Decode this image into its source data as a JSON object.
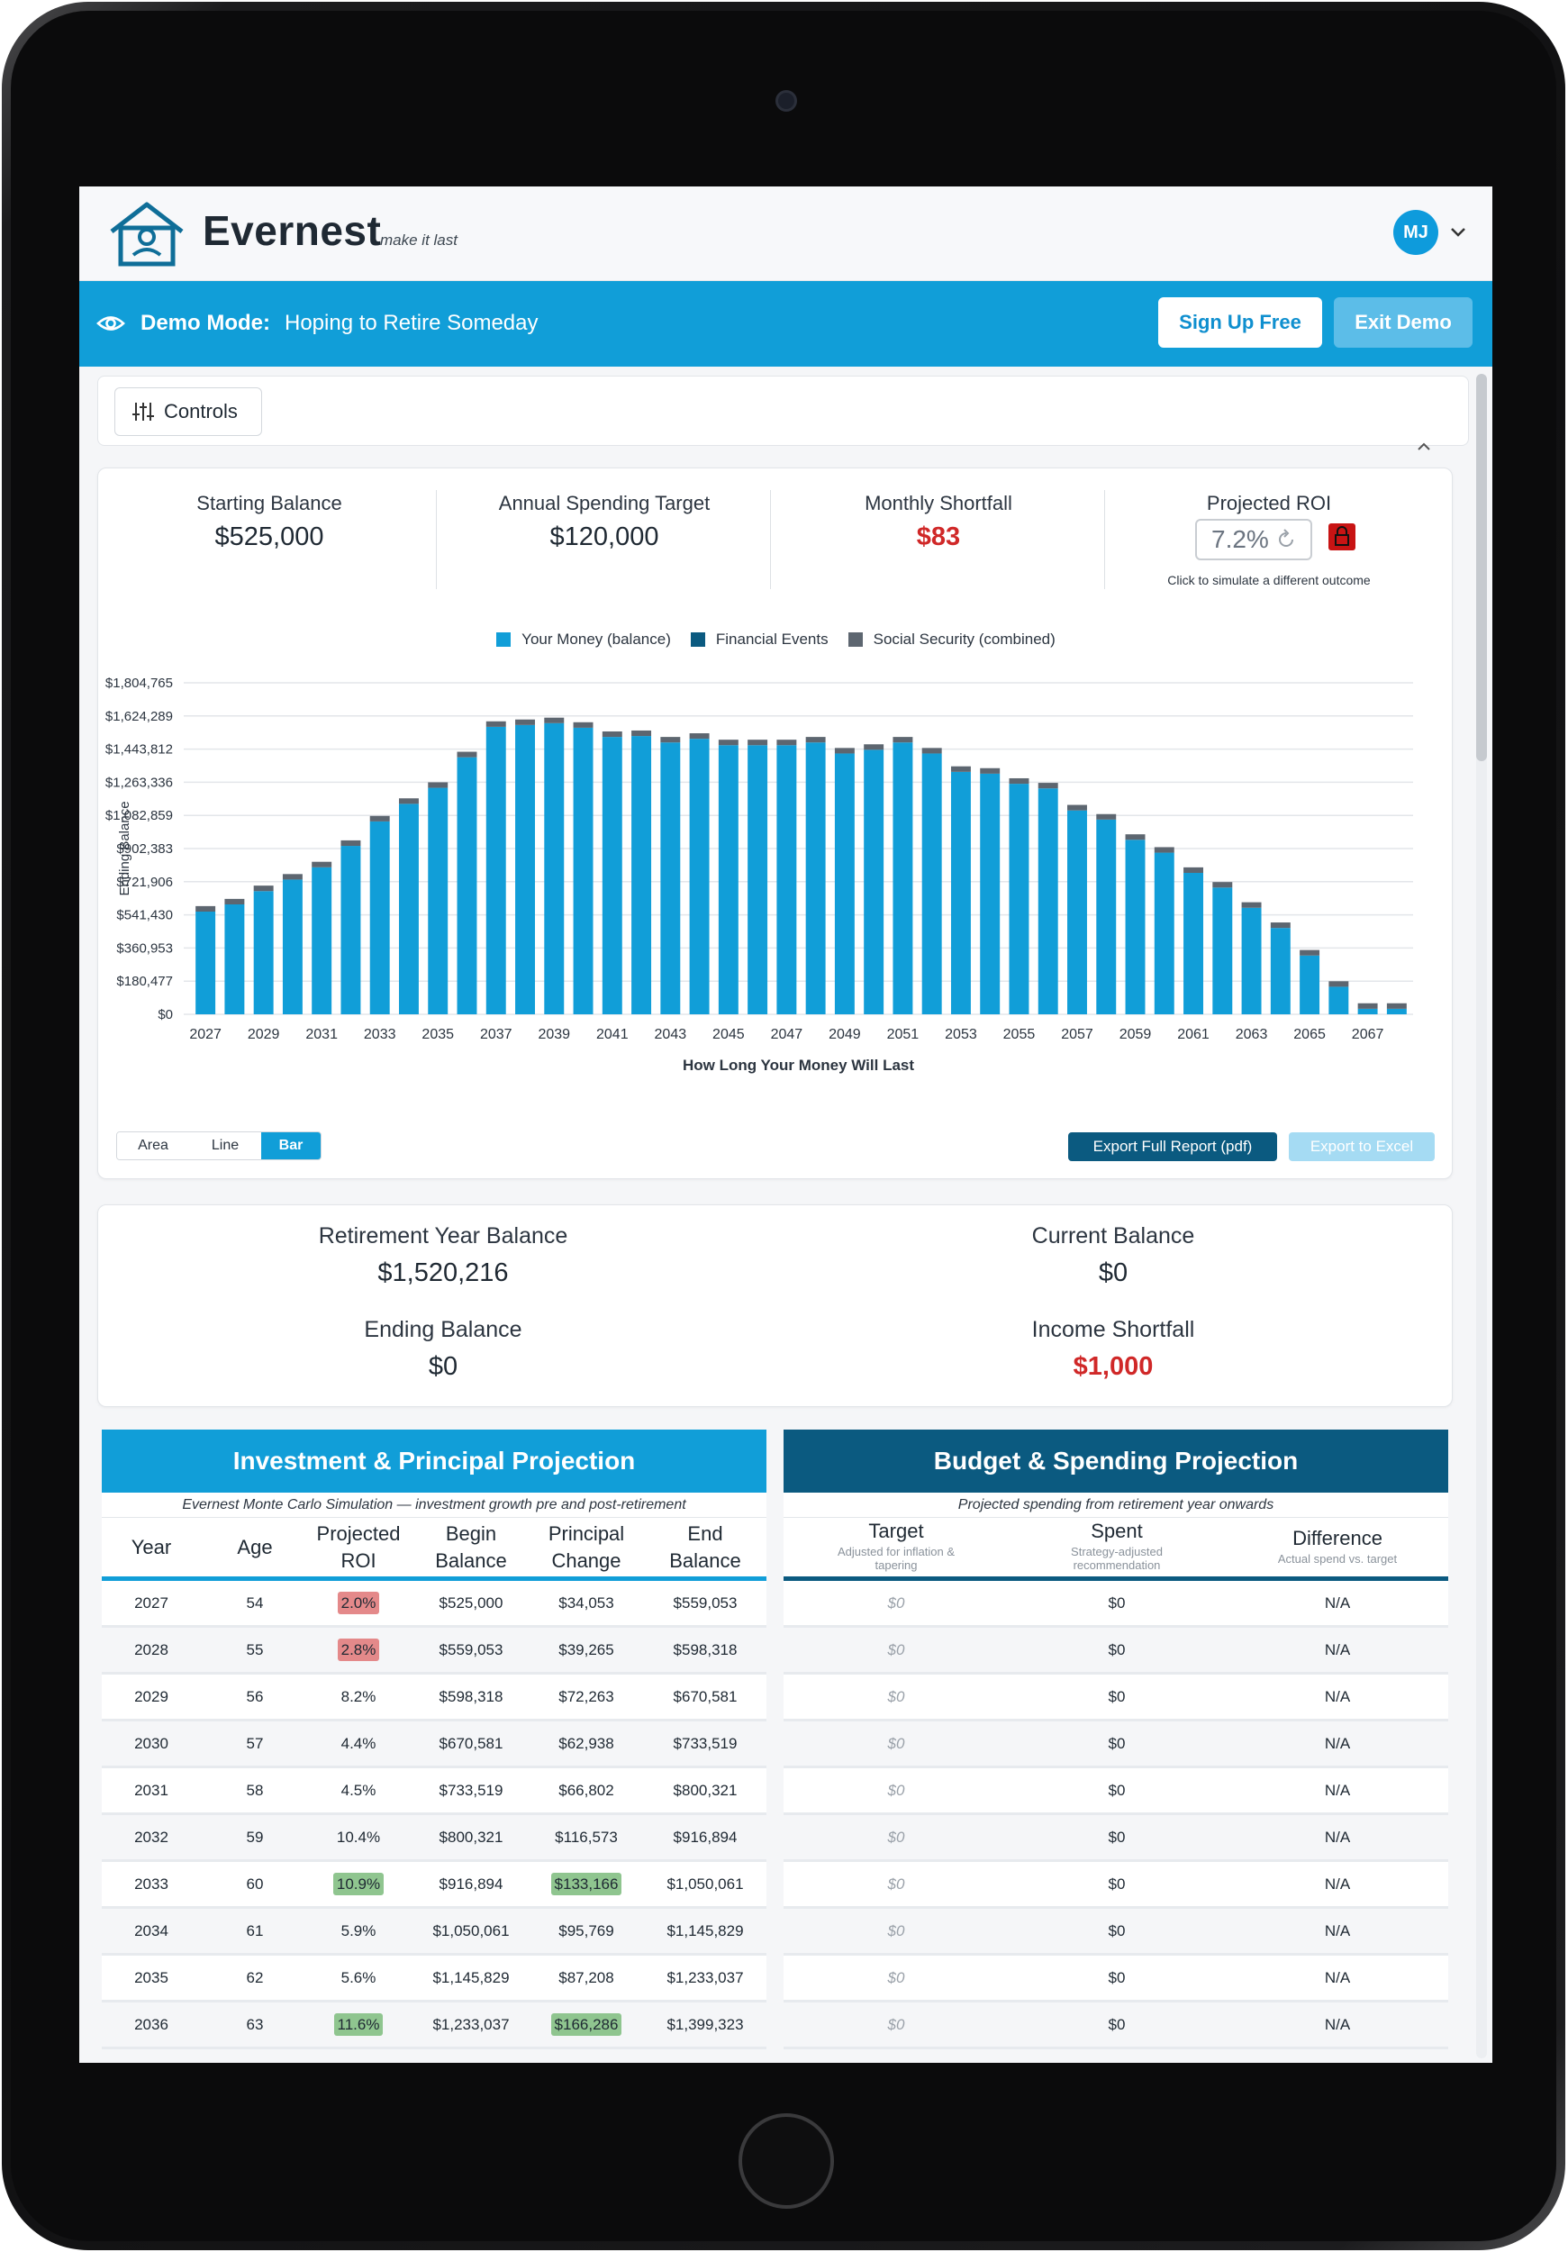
{
  "app": {
    "brand": "Evernest",
    "tagline": "make it last",
    "user_initials": "MJ"
  },
  "demo": {
    "label": "Demo Mode:",
    "text": "Hoping to Retire Someday",
    "signup": "Sign Up Free",
    "exit": "Exit Demo"
  },
  "controls": {
    "label": "Controls"
  },
  "stats": {
    "starting_balance": {
      "label": "Starting Balance",
      "value": "$525,000"
    },
    "annual_spending": {
      "label": "Annual Spending Target",
      "value": "$120,000"
    },
    "monthly_shortfall": {
      "label": "Monthly Shortfall",
      "value": "$83"
    },
    "roi": {
      "label": "Projected ROI",
      "value": "7.2%",
      "note": "Click to simulate a different outcome"
    }
  },
  "colors": {
    "primary": "#119ed8",
    "dark": "#0b5a80",
    "social": "#5d6670",
    "red": "#d02828"
  },
  "chart_controls": {
    "area": "Area",
    "line": "Line",
    "bar": "Bar",
    "export_pdf": "Export Full Report (pdf)",
    "export_excel": "Export to Excel"
  },
  "chart_data": {
    "type": "bar",
    "xlabel": "How Long Your Money Will Last",
    "ylabel": "Ending Balance",
    "ylim": [
      0,
      1804765
    ],
    "y_ticks": [
      "$0",
      "$180,477",
      "$360,953",
      "$541,430",
      "$721,906",
      "$902,383",
      "$1,082,859",
      "$1,263,336",
      "$1,443,812",
      "$1,624,289",
      "$1,804,765"
    ],
    "x_ticks": [
      "2027",
      "2029",
      "2031",
      "2033",
      "2035",
      "2037",
      "2039",
      "2041",
      "2043",
      "2045",
      "2047",
      "2049",
      "2051",
      "2053",
      "2055",
      "2057",
      "2059",
      "2061",
      "2063",
      "2065",
      "2067"
    ],
    "legend": [
      "Your Money (balance)",
      "Financial Events",
      "Social Security (combined)"
    ],
    "categories": [
      2027,
      2028,
      2029,
      2030,
      2031,
      2032,
      2033,
      2034,
      2035,
      2036,
      2037,
      2038,
      2039,
      2040,
      2041,
      2042,
      2043,
      2044,
      2045,
      2046,
      2047,
      2048,
      2049,
      2050,
      2051,
      2052,
      2053,
      2054,
      2055,
      2056,
      2057,
      2058,
      2059,
      2060,
      2061,
      2062,
      2063,
      2064,
      2065,
      2066,
      2067,
      2068
    ],
    "series": [
      {
        "name": "Your Money (balance)",
        "values": [
          559053,
          598318,
          670581,
          733519,
          800321,
          916894,
          1050061,
          1145829,
          1233037,
          1399323,
          1565000,
          1575000,
          1585000,
          1560000,
          1510000,
          1515000,
          1480000,
          1500000,
          1465000,
          1465000,
          1465000,
          1480000,
          1420000,
          1440000,
          1480000,
          1420000,
          1320000,
          1310000,
          1255000,
          1230000,
          1110000,
          1060000,
          950000,
          880000,
          770000,
          690000,
          580000,
          470000,
          320000,
          150000,
          30000,
          30000
        ]
      },
      {
        "name": "Social Security (combined)",
        "values": [
          30000,
          30000,
          30000,
          30000,
          30000,
          30000,
          30000,
          30000,
          30000,
          30000,
          30000,
          30000,
          30000,
          30000,
          30000,
          30000,
          30000,
          30000,
          30000,
          30000,
          30000,
          30000,
          30000,
          30000,
          30000,
          30000,
          30000,
          30000,
          30000,
          30000,
          30000,
          30000,
          30000,
          30000,
          30000,
          30000,
          30000,
          30000,
          30000,
          30000,
          30000,
          30000
        ]
      }
    ]
  },
  "summary": {
    "retirement_year_balance": {
      "label": "Retirement Year Balance",
      "value": "$1,520,216"
    },
    "current_balance": {
      "label": "Current Balance",
      "value": "$0"
    },
    "ending_balance": {
      "label": "Ending Balance",
      "value": "$0"
    },
    "income_shortfall": {
      "label": "Income Shortfall",
      "value": "$1,000"
    }
  },
  "investment_table": {
    "title": "Investment & Principal Projection",
    "subtitle": "Evernest Monte Carlo Simulation — investment growth pre and post-retirement",
    "headers": {
      "year": "Year",
      "age": "Age",
      "roi_1": "Projected",
      "roi_2": "ROI",
      "begin_1": "Begin",
      "begin_2": "Balance",
      "change_1": "Principal",
      "change_2": "Change",
      "end_1": "End",
      "end_2": "Balance"
    },
    "rows": [
      {
        "year": "2027",
        "age": "54",
        "roi": "2.0%",
        "begin": "$525,000",
        "change": "$34,053",
        "end": "$559,053"
      },
      {
        "year": "2028",
        "age": "55",
        "roi": "2.8%",
        "begin": "$559,053",
        "change": "$39,265",
        "end": "$598,318"
      },
      {
        "year": "2029",
        "age": "56",
        "roi": "8.2%",
        "begin": "$598,318",
        "change": "$72,263",
        "end": "$670,581"
      },
      {
        "year": "2030",
        "age": "57",
        "roi": "4.4%",
        "begin": "$670,581",
        "change": "$62,938",
        "end": "$733,519"
      },
      {
        "year": "2031",
        "age": "58",
        "roi": "4.5%",
        "begin": "$733,519",
        "change": "$66,802",
        "end": "$800,321"
      },
      {
        "year": "2032",
        "age": "59",
        "roi": "10.4%",
        "begin": "$800,321",
        "change": "$116,573",
        "end": "$916,894"
      },
      {
        "year": "2033",
        "age": "60",
        "roi": "10.9%",
        "begin": "$916,894",
        "change": "$133,166",
        "end": "$1,050,061"
      },
      {
        "year": "2034",
        "age": "61",
        "roi": "5.9%",
        "begin": "$1,050,061",
        "change": "$95,769",
        "end": "$1,145,829"
      },
      {
        "year": "2035",
        "age": "62",
        "roi": "5.6%",
        "begin": "$1,145,829",
        "change": "$87,208",
        "end": "$1,233,037"
      },
      {
        "year": "2036",
        "age": "63",
        "roi": "11.6%",
        "begin": "$1,233,037",
        "change": "$166,286",
        "end": "$1,399,323"
      }
    ]
  },
  "budget_table": {
    "title": "Budget & Spending Projection",
    "subtitle": "Projected spending from retirement year onwards",
    "headers": {
      "target": "Target",
      "target_note_1": "Adjusted for inflation &",
      "target_note_2": "tapering",
      "spent": "Spent",
      "spent_note_1": "Strategy-adjusted",
      "spent_note_2": "recommendation",
      "diff": "Difference",
      "diff_note": "Actual spend vs. target"
    },
    "rows": [
      {
        "target": "$0",
        "spent": "$0",
        "diff": "N/A"
      },
      {
        "target": "$0",
        "spent": "$0",
        "diff": "N/A"
      },
      {
        "target": "$0",
        "spent": "$0",
        "diff": "N/A"
      },
      {
        "target": "$0",
        "spent": "$0",
        "diff": "N/A"
      },
      {
        "target": "$0",
        "spent": "$0",
        "diff": "N/A"
      },
      {
        "target": "$0",
        "spent": "$0",
        "diff": "N/A"
      },
      {
        "target": "$0",
        "spent": "$0",
        "diff": "N/A"
      },
      {
        "target": "$0",
        "spent": "$0",
        "diff": "N/A"
      },
      {
        "target": "$0",
        "spent": "$0",
        "diff": "N/A"
      },
      {
        "target": "$0",
        "spent": "$0",
        "diff": "N/A"
      }
    ]
  }
}
